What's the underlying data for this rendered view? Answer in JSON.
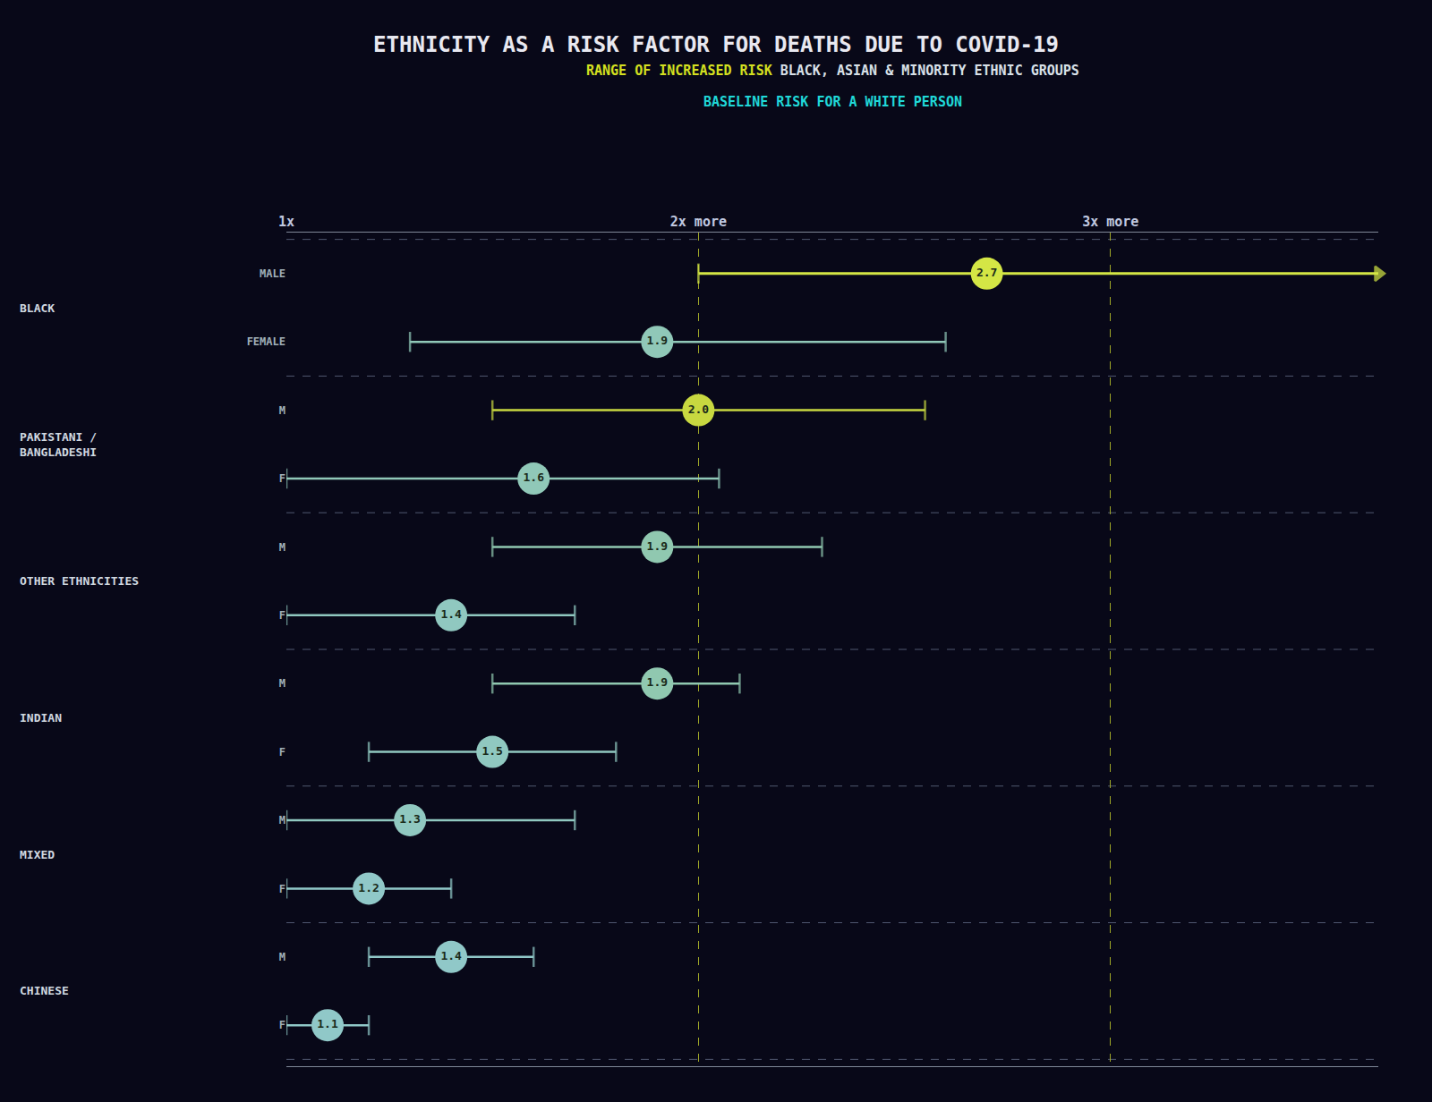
{
  "chart_data": {
    "type": "dot_range",
    "title": "ETHNICITY AS A RISK FACTOR FOR DEATHS DUE TO COVID-19",
    "subtitle": [
      {
        "text": "RANGE OF INCREASED RISK",
        "color": "#d4e020"
      },
      {
        "text": " BLACK, ASIAN & MINORITY ETHNIC GROUPS",
        "color": "#d8e0e8"
      }
    ],
    "annotations": [
      {
        "text": "BASELINE RISK FOR A WHITE PERSON",
        "color": "#20d8d8"
      }
    ],
    "groups": [
      "BLACK",
      "BLACK",
      "PAKISTANI /\nBANGLADESHI",
      "PAKISTANI /\nBANGLADESHI",
      "OTHER ETHNICITIES",
      "OTHER ETHNICITIES",
      "INDIAN",
      "INDIAN",
      "MIXED",
      "MIXED",
      "CHINESE",
      "CHINESE"
    ],
    "categories": [
      "MALE",
      "FEMALE",
      "M",
      "F",
      "M",
      "F",
      "M",
      "F",
      "M",
      "F",
      "M",
      "F"
    ],
    "values": [
      2.7,
      1.9,
      2.0,
      1.6,
      1.9,
      1.4,
      1.9,
      1.5,
      1.3,
      1.2,
      1.4,
      1.1
    ],
    "value_labels": [
      "2.7",
      "1.9",
      "2.0",
      "1.6",
      "1.9",
      "1.4",
      "1.9",
      "1.5",
      "1.3",
      "1.2",
      "1.4",
      "1.1"
    ],
    "low": [
      2.0,
      1.3,
      1.5,
      1.0,
      1.5,
      1.0,
      1.5,
      1.2,
      1.0,
      1.0,
      1.2,
      1.0
    ],
    "high": [
      3.65,
      2.6,
      2.55,
      2.05,
      2.3,
      1.7,
      2.1,
      1.8,
      1.7,
      1.4,
      1.6,
      1.2
    ],
    "colors": [
      "#d4e645",
      "#90c8b8",
      "#c8d840",
      "#90c8b8",
      "#90c8b0",
      "#90c8c0",
      "#90c8b0",
      "#90c8c0",
      "#90c8c0",
      "#90c8c8",
      "#90c8c8",
      "#90c8c8"
    ],
    "xlim": [
      1.0,
      3.65
    ],
    "xticks": [
      {
        "value": 1,
        "label": "1x"
      },
      {
        "value": 2,
        "label": "2x more"
      },
      {
        "value": 3,
        "label": "3x more"
      }
    ],
    "grid": true,
    "data_labels": true
  }
}
